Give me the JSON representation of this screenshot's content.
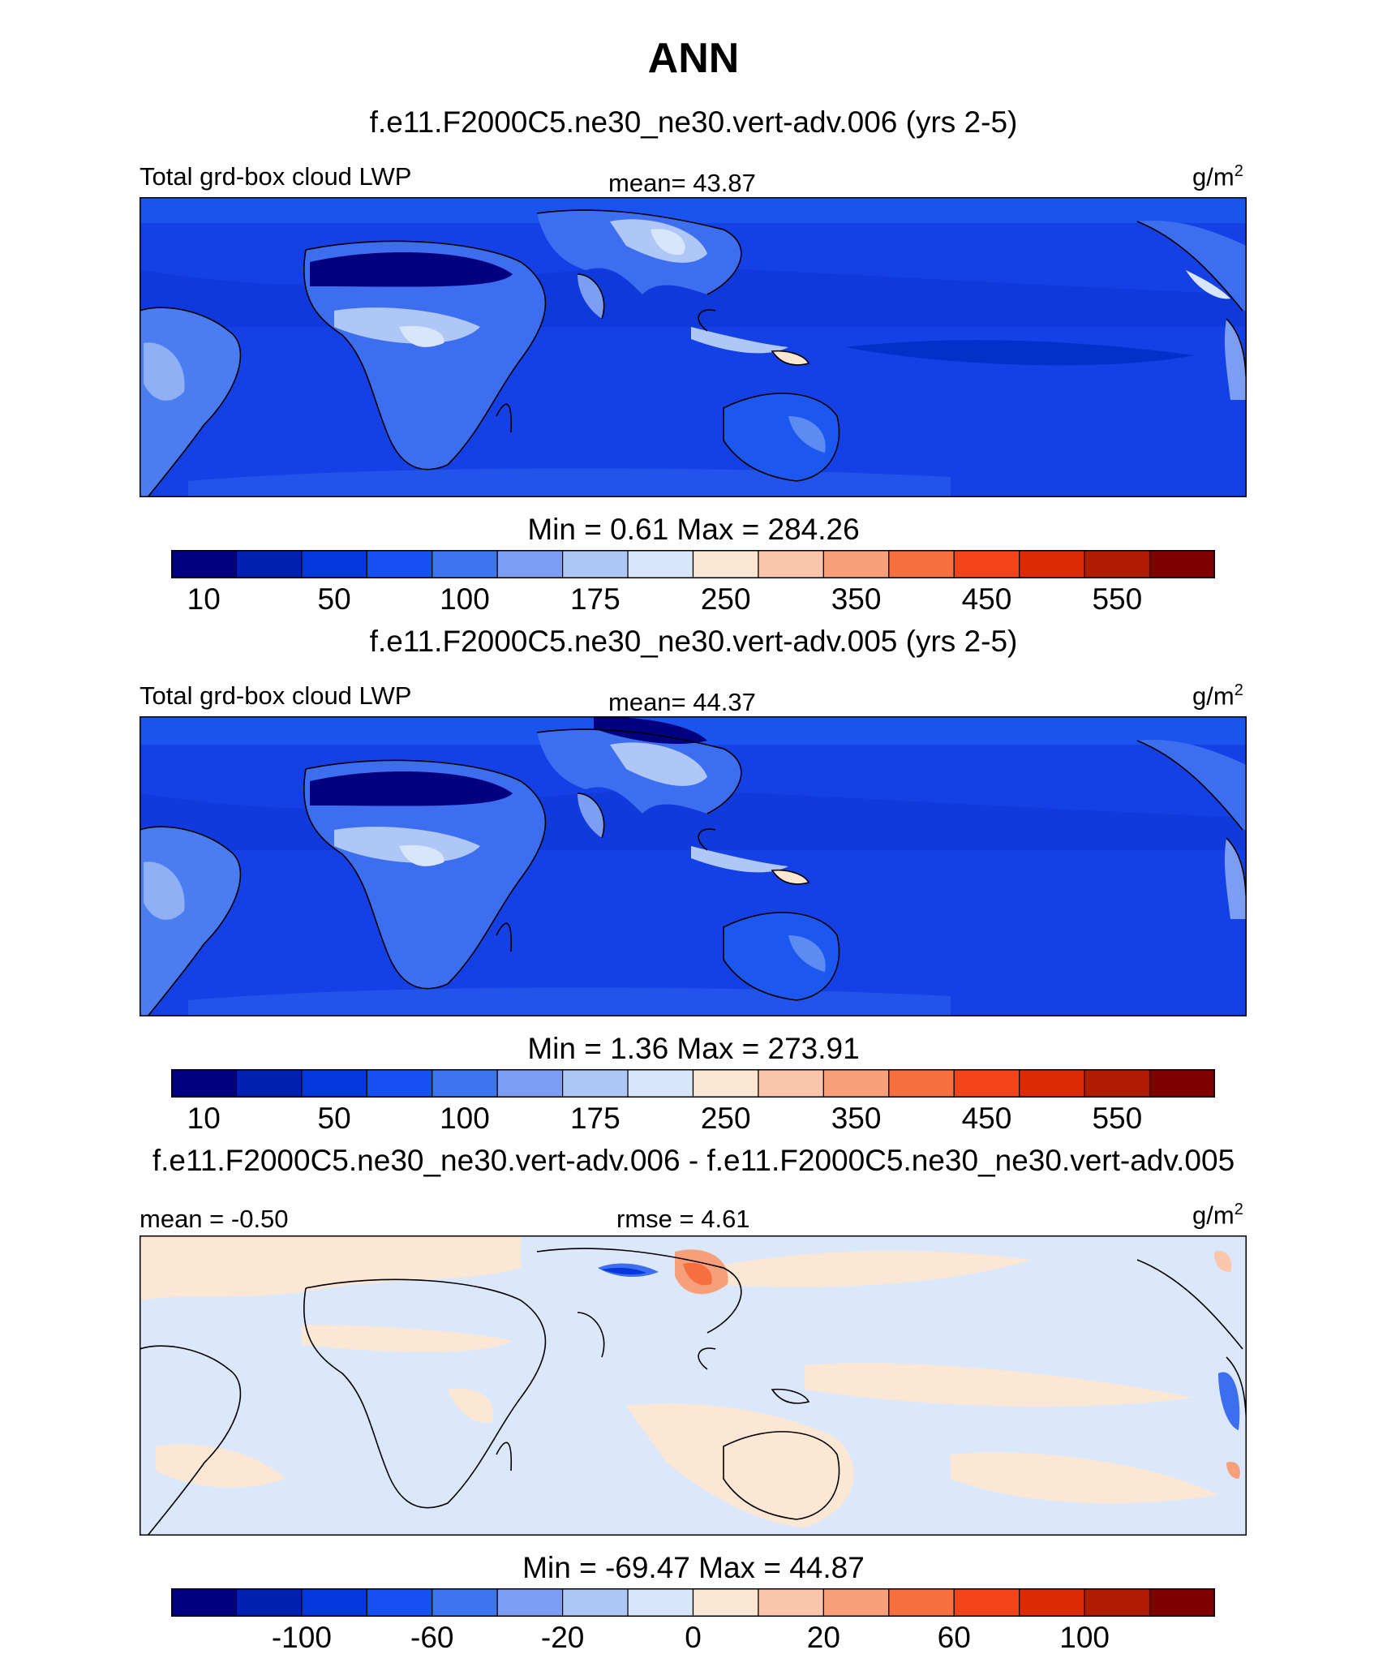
{
  "title": "ANN",
  "chart_data": [
    {
      "type": "heatmap",
      "title": "f.e11.F2000C5.ne30_ne30.vert-adv.006 (yrs 2-5)",
      "left_label": "Total grd-box cloud LWP",
      "center_label": "mean=  43.87",
      "units": "g/m",
      "units_sup": "2",
      "minmax": "Min =   0.61 Max = 284.26",
      "min": 0.61,
      "max": 284.26,
      "mean": 43.87,
      "colorbar_ticks": [
        "10",
        "50",
        "100",
        "175",
        "250",
        "350",
        "450",
        "550"
      ]
    },
    {
      "type": "heatmap",
      "title": "f.e11.F2000C5.ne30_ne30.vert-adv.005 (yrs 2-5)",
      "left_label": "Total grd-box cloud LWP",
      "center_label": "mean=  44.37",
      "units": "g/m",
      "units_sup": "2",
      "minmax": "Min =   1.36 Max = 273.91",
      "min": 1.36,
      "max": 273.91,
      "mean": 44.37,
      "colorbar_ticks": [
        "10",
        "50",
        "100",
        "175",
        "250",
        "350",
        "450",
        "550"
      ]
    },
    {
      "type": "heatmap",
      "title": "f.e11.F2000C5.ne30_ne30.vert-adv.006 - f.e11.F2000C5.ne30_ne30.vert-adv.005",
      "left_label": "mean =  -0.50",
      "center_label": "rmse =   4.61",
      "units": "g/m",
      "units_sup": "2",
      "minmax": "Min = -69.47 Max =  44.87",
      "min": -69.47,
      "max": 44.87,
      "mean": -0.5,
      "rmse": 4.61,
      "colorbar_ticks": [
        "-100",
        "-60",
        "-20",
        "0",
        "20",
        "60",
        "100"
      ]
    }
  ],
  "colors": {
    "palette": [
      "#02007f",
      "#0020b0",
      "#0437dc",
      "#1650f2",
      "#3e74f0",
      "#7b9ef2",
      "#aec7f7",
      "#d8e6fb",
      "#fce6d4",
      "#fbc6ab",
      "#f79f7a",
      "#f6703f",
      "#f2431a",
      "#db2a05",
      "#b01c02",
      "#7f0000"
    ],
    "ocean_abs": "#1440e6",
    "diff_bg": "#dbe8fb"
  }
}
